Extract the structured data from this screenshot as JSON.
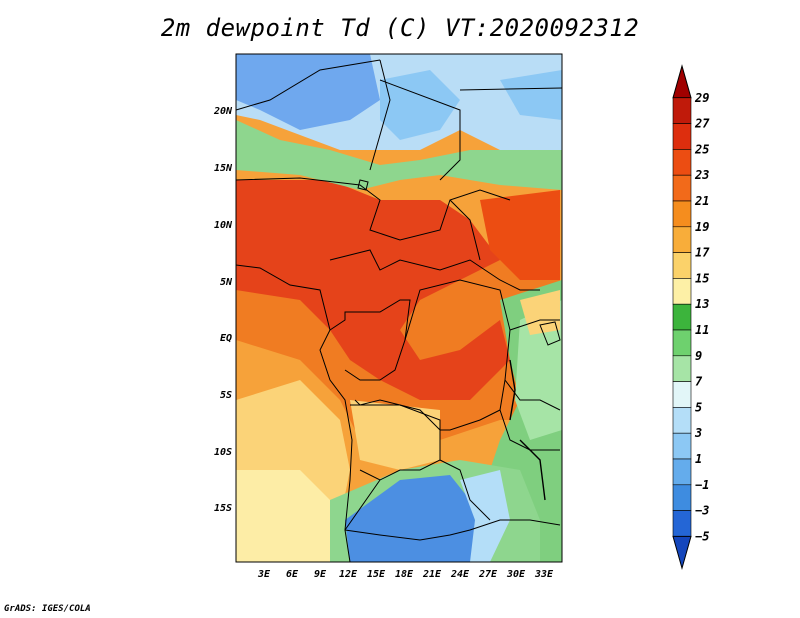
{
  "title": "2m dewpoint Td (C) VT:2020092312",
  "credit": "GrADS: IGES/COLA",
  "map": {
    "lat_labels": [
      "20N",
      "15N",
      "10N",
      "5N",
      "EQ",
      "5S",
      "10S",
      "15S"
    ],
    "lon_labels": [
      "3E",
      "6E",
      "9E",
      "12E",
      "15E",
      "18E",
      "21E",
      "24E",
      "27E",
      "30E",
      "33E"
    ],
    "lat_range": [
      -20,
      25
    ],
    "lon_range": [
      0,
      35
    ]
  },
  "colorbar": {
    "labels": [
      "29",
      "27",
      "25",
      "23",
      "21",
      "19",
      "17",
      "15",
      "13",
      "11",
      "9",
      "7",
      "5",
      "3",
      "1",
      "−1",
      "−3",
      "−5"
    ],
    "colors": [
      "#a00000",
      "#c01a0a",
      "#dd2e0e",
      "#ec4d12",
      "#f26a1a",
      "#f58d1e",
      "#f8ad3a",
      "#fbd26a",
      "#fdf0a6",
      "#3cb43c",
      "#6ed16e",
      "#a6e4a6",
      "#e2f6f8",
      "#b4def8",
      "#8cc8f4",
      "#64acec",
      "#3e8ce0",
      "#2466d6",
      "#1446bc"
    ]
  },
  "regions": {
    "blue_north": "#6fa8ee",
    "light_blue": "#b9ddf6",
    "green_band": "#8ed68e",
    "red_core": "#e5431a",
    "orange": "#f07c22",
    "light_orange": "#f6a23a",
    "yellow": "#fbd378",
    "pale_yellow": "#fdeda6",
    "blue_south": "#4c8fe2",
    "green_east": "#7fcf7f",
    "dark_border": "#000000"
  }
}
